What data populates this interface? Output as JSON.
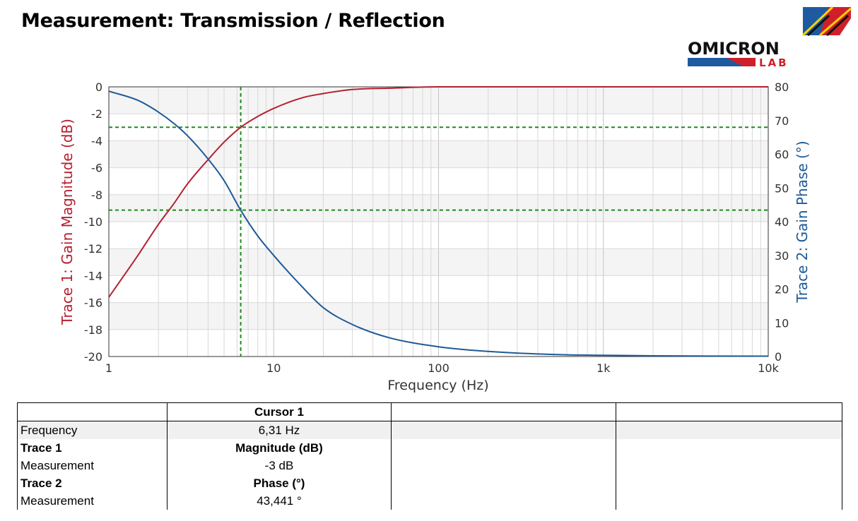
{
  "page": {
    "title": "Measurement: Transmission / Reflection"
  },
  "logo": {
    "line1": "OMICRON",
    "line2": "LAB",
    "icon": "omicron-lab-logo"
  },
  "colors": {
    "trace1": "#b52030",
    "trace2": "#1f5a96",
    "cursor": "#1e8a1e",
    "grid": "#d8d8d8",
    "band": "#f4f4f4",
    "logo_red": "#d01f2a",
    "logo_blue": "#1e5aa0",
    "logo_yellow": "#f5d400"
  },
  "chart_data": {
    "type": "line",
    "x_scale": "log",
    "xlabel": "Frequency (Hz)",
    "ylabel": "Trace 1: Gain Magnitude (dB)",
    "y2label": "Trace 2: Gain Phase (°)",
    "xlim": [
      1,
      10000
    ],
    "ylim": [
      -20,
      0
    ],
    "y2lim": [
      0,
      80
    ],
    "x_ticks": [
      1,
      10,
      100,
      1000,
      10000
    ],
    "x_tick_labels": [
      "1",
      "10",
      "100",
      "1k",
      "10k"
    ],
    "y_ticks": [
      0,
      -2,
      -4,
      -6,
      -8,
      -10,
      -12,
      -14,
      -16,
      -18,
      -20
    ],
    "y_tick_labels": [
      "0",
      "-2",
      "-4",
      "-6",
      "-8",
      "-10",
      "-12",
      "-14",
      "-16",
      "-18",
      "-20"
    ],
    "y2_ticks": [
      80,
      70,
      60,
      50,
      40,
      30,
      20,
      10,
      0
    ],
    "y2_tick_labels": [
      "80",
      "70",
      "60",
      "50",
      "40",
      "30",
      "20",
      "10",
      "0"
    ],
    "grid": true,
    "series": [
      {
        "name": "Trace 1",
        "axis": "left",
        "x": [
          1,
          1.5,
          2,
          2.5,
          3,
          4,
          5,
          6.31,
          8,
          10,
          15,
          20,
          30,
          50,
          100,
          200,
          500,
          1000,
          10000
        ],
        "y": [
          -15.6,
          -12.5,
          -10.2,
          -8.6,
          -7.2,
          -5.4,
          -4.1,
          -3.0,
          -2.2,
          -1.6,
          -0.8,
          -0.5,
          -0.2,
          -0.1,
          0,
          0,
          0,
          0,
          0
        ]
      },
      {
        "name": "Trace 2",
        "axis": "right",
        "x": [
          1,
          1.5,
          2,
          2.5,
          3,
          4,
          5,
          6.31,
          8,
          10,
          15,
          20,
          30,
          50,
          100,
          200,
          500,
          1000,
          2000,
          10000
        ],
        "y": [
          78.7,
          76.0,
          72.5,
          69.0,
          65.5,
          58.6,
          52.2,
          43.4,
          35.8,
          30.0,
          20.5,
          14.5,
          9.5,
          5.6,
          2.9,
          1.5,
          0.6,
          0.35,
          0.2,
          0.1
        ]
      }
    ],
    "cursor": {
      "x": 6.31,
      "y": -3.0,
      "y2": 43.441
    }
  },
  "table": {
    "header": [
      "",
      "Cursor 1",
      "",
      ""
    ],
    "rows": [
      {
        "label": "Frequency",
        "value": "6,31 Hz",
        "bold": false,
        "shaded": true
      },
      {
        "label": "Trace 1",
        "value": "Magnitude (dB)",
        "bold": true,
        "shaded": false
      },
      {
        "label": "Measurement",
        "value": "-3 dB",
        "bold": false,
        "shaded": false
      },
      {
        "label": "Trace 2",
        "value": "Phase (°)",
        "bold": true,
        "shaded": false
      },
      {
        "label": "Measurement",
        "value": "43,441 °",
        "bold": false,
        "shaded": false
      }
    ]
  }
}
